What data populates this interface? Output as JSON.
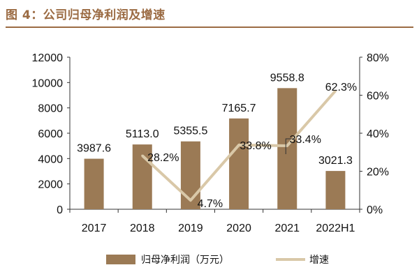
{
  "header": {
    "title": "图 4：公司归母净利润及增速"
  },
  "chart_data": {
    "type": "bar+line",
    "categories": [
      "2017",
      "2018",
      "2019",
      "2020",
      "2021",
      "2022H1"
    ],
    "series": [
      {
        "name": "归母净利润（万元）",
        "type": "bar",
        "axis": "left",
        "values": [
          3987.6,
          5113.0,
          5355.5,
          7165.7,
          9558.8,
          3021.3
        ],
        "labels": [
          "3987.6",
          "5113.0",
          "5355.5",
          "7165.7",
          "9558.8",
          "3021.3"
        ],
        "color": "#9b7a55"
      },
      {
        "name": "增速",
        "type": "line",
        "axis": "right",
        "values": [
          null,
          28.2,
          4.7,
          33.8,
          33.4,
          62.3
        ],
        "labels": [
          null,
          "28.2%",
          "4.7%",
          "33.8%",
          "33.4%",
          "62.3%"
        ],
        "color": "#d9c8a8"
      }
    ],
    "left_axis": {
      "min": 0,
      "max": 12000,
      "ticks": [
        "0",
        "2000",
        "4000",
        "6000",
        "8000",
        "10000",
        "12000"
      ]
    },
    "right_axis": {
      "min": 0,
      "max": 80,
      "ticks": [
        "0%",
        "20%",
        "40%",
        "60%",
        "80%"
      ]
    },
    "legend_position": "bottom",
    "grid": false
  }
}
